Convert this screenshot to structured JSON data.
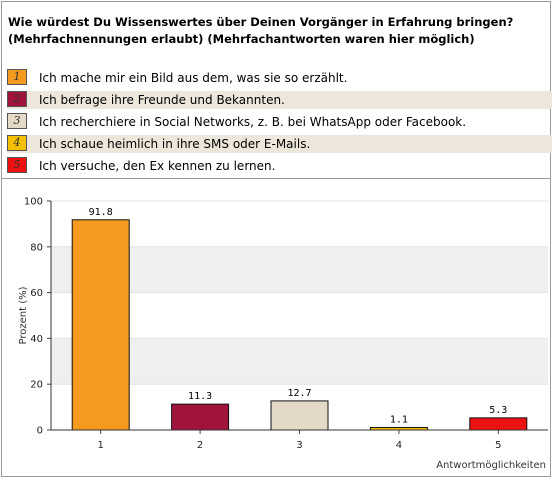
{
  "question": {
    "line1": "Wie würdest Du Wissenswertes über Deinen Vorgänger in Erfahrung bringen?",
    "line2": "(Mehrfachnennungen erlaubt) (Mehrfachantworten waren hier möglich)"
  },
  "legend": [
    {
      "num": "1",
      "label": "Ich mache mir ein Bild aus dem, was sie so erzählt.",
      "color": "#f39a1f"
    },
    {
      "num": "2",
      "label": "Ich befrage ihre Freunde und Bekannten.",
      "color": "#a0143c"
    },
    {
      "num": "3",
      "label": "Ich recherchiere in Social Networks, z. B. bei WhatsApp oder Facebook.",
      "color": "#e3d9c6"
    },
    {
      "num": "4",
      "label": "Ich schaue heimlich in ihre SMS oder E-Mails.",
      "color": "#f5c000"
    },
    {
      "num": "5",
      "label": "Ich versuche, den Ex kennen zu lernen.",
      "color": "#ee1111"
    }
  ],
  "chart_data": {
    "type": "bar",
    "categories": [
      "1",
      "2",
      "3",
      "4",
      "5"
    ],
    "values": [
      91.8,
      11.3,
      12.7,
      1.1,
      5.3
    ],
    "value_labels": [
      "91.8",
      "11.3",
      "12.7",
      "1.1",
      "5.3"
    ],
    "colors": [
      "#f39a1f",
      "#a0143c",
      "#e3d9c6",
      "#f5c000",
      "#ee1111"
    ],
    "ylabel": "Prozent (%)",
    "xlabel": "Antwortmöglichkeiten",
    "ylim": [
      0,
      100
    ],
    "yticks": [
      "0",
      "20",
      "40",
      "60",
      "80",
      "100"
    ],
    "grid": "alternating horizontal bands",
    "legend_position": "top"
  }
}
